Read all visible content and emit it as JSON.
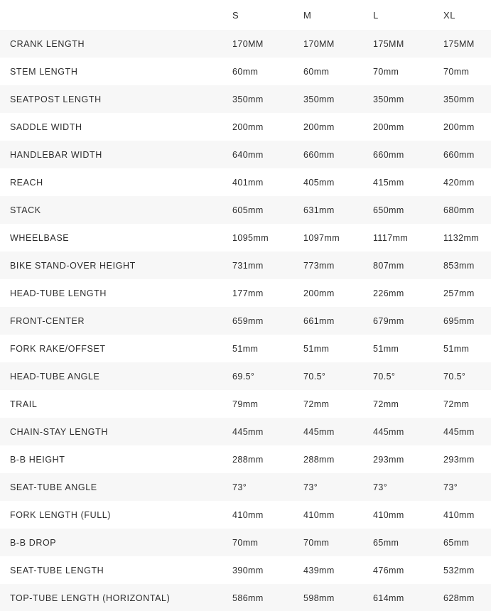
{
  "table": {
    "columns": [
      "S",
      "M",
      "L",
      "XL"
    ],
    "rows": [
      {
        "label": "CRANK LENGTH",
        "values": [
          "170MM",
          "170MM",
          "175MM",
          "175MM"
        ]
      },
      {
        "label": "STEM LENGTH",
        "values": [
          "60mm",
          "60mm",
          "70mm",
          "70mm"
        ]
      },
      {
        "label": "SEATPOST LENGTH",
        "values": [
          "350mm",
          "350mm",
          "350mm",
          "350mm"
        ]
      },
      {
        "label": "SADDLE WIDTH",
        "values": [
          "200mm",
          "200mm",
          "200mm",
          "200mm"
        ]
      },
      {
        "label": "HANDLEBAR WIDTH",
        "values": [
          "640mm",
          "660mm",
          "660mm",
          "660mm"
        ]
      },
      {
        "label": "REACH",
        "values": [
          "401mm",
          "405mm",
          "415mm",
          "420mm"
        ]
      },
      {
        "label": "STACK",
        "values": [
          "605mm",
          "631mm",
          "650mm",
          "680mm"
        ]
      },
      {
        "label": "WHEELBASE",
        "values": [
          "1095mm",
          "1097mm",
          "1117mm",
          "1132mm"
        ]
      },
      {
        "label": "BIKE STAND-OVER HEIGHT",
        "values": [
          "731mm",
          "773mm",
          "807mm",
          "853mm"
        ]
      },
      {
        "label": "HEAD-TUBE LENGTH",
        "values": [
          "177mm",
          "200mm",
          "226mm",
          "257mm"
        ]
      },
      {
        "label": "FRONT-CENTER",
        "values": [
          "659mm",
          "661mm",
          "679mm",
          "695mm"
        ]
      },
      {
        "label": "FORK RAKE/OFFSET",
        "values": [
          "51mm",
          "51mm",
          "51mm",
          "51mm"
        ]
      },
      {
        "label": "HEAD-TUBE ANGLE",
        "values": [
          "69.5°",
          "70.5°",
          "70.5°",
          "70.5°"
        ]
      },
      {
        "label": "TRAIL",
        "values": [
          "79mm",
          "72mm",
          "72mm",
          "72mm"
        ]
      },
      {
        "label": "CHAIN-STAY LENGTH",
        "values": [
          "445mm",
          "445mm",
          "445mm",
          "445mm"
        ]
      },
      {
        "label": "B-B HEIGHT",
        "values": [
          "288mm",
          "288mm",
          "293mm",
          "293mm"
        ]
      },
      {
        "label": "SEAT-TUBE ANGLE",
        "values": [
          "73°",
          "73°",
          "73°",
          "73°"
        ]
      },
      {
        "label": "FORK LENGTH (FULL)",
        "values": [
          "410mm",
          "410mm",
          "410mm",
          "410mm"
        ]
      },
      {
        "label": "B-B DROP",
        "values": [
          "70mm",
          "70mm",
          "65mm",
          "65mm"
        ]
      },
      {
        "label": "SEAT-TUBE LENGTH",
        "values": [
          "390mm",
          "439mm",
          "476mm",
          "532mm"
        ]
      },
      {
        "label": "TOP-TUBE LENGTH (HORIZONTAL)",
        "values": [
          "586mm",
          "598mm",
          "614mm",
          "628mm"
        ]
      }
    ],
    "colors": {
      "stripe": "#f7f7f7",
      "background": "#ffffff",
      "text": "#2d2d2d"
    }
  }
}
